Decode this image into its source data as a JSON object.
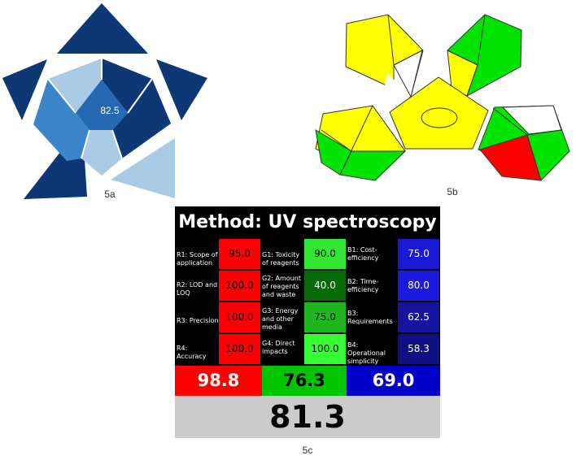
{
  "panel_a": {
    "label": "5a",
    "center_value": "82.5",
    "colors": {
      "dark": "#0d3775",
      "medium": "#3a86c8",
      "light": "#a9cbe6",
      "center": "#2569b3"
    }
  },
  "panel_b": {
    "label": "5b",
    "colors": {
      "yellow": "#ffff00",
      "green": "#00e400",
      "red": "#ff0000",
      "white": "#ffffff"
    }
  },
  "panel_c": {
    "label": "5c",
    "title": "Method: UV spectroscopy",
    "red": {
      "color": "#ff0000",
      "criteria": [
        {
          "label": "R1: Scope of application",
          "score": "95.0"
        },
        {
          "label": "R2: LOD and LOQ",
          "score": "100.0"
        },
        {
          "label": "R3: Precision",
          "score": "100.0"
        },
        {
          "label": "R4: Accuracy",
          "score": "100.0"
        }
      ],
      "total": "98.8"
    },
    "green": {
      "color": "#00e400",
      "criteria": [
        {
          "label": "G1: Toxicity of reagents",
          "score": "90.0"
        },
        {
          "label": "G2: Amount of reagents and waste",
          "score": "40.0"
        },
        {
          "label": "G3: Energy and other media",
          "score": "75.0"
        },
        {
          "label": "G4: Direct impacts",
          "score": "100.0"
        }
      ],
      "total": "76.3"
    },
    "blue": {
      "color": "#0000c8",
      "criteria": [
        {
          "label": "B1: Cost-efficiency",
          "score": "75.0"
        },
        {
          "label": "B2: Time-efficiency",
          "score": "80.0"
        },
        {
          "label": "B3: Requirements",
          "score": "62.5"
        },
        {
          "label": "B4: Operational simplicity",
          "score": "58.3"
        }
      ],
      "total": "69.0"
    },
    "overall": "81.3"
  }
}
